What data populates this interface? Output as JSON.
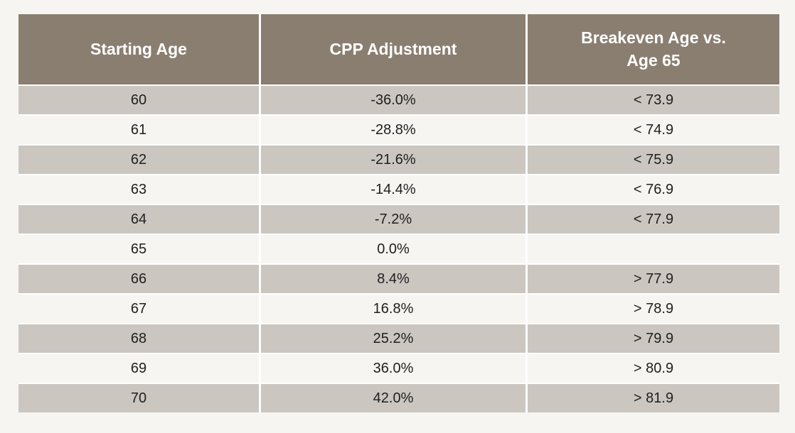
{
  "colors": {
    "header_bg": "#8a7e70",
    "header_text": "#ffffff",
    "row_shaded_bg": "#cbc6c0",
    "row_light_bg": "#f7f5f2",
    "cell_text": "#1f1f1f",
    "separator": "#ffffff",
    "page_bg": "#f7f5f2"
  },
  "chart_data": {
    "type": "table",
    "title": "",
    "columns": [
      {
        "id": "starting_age",
        "label": "Starting Age"
      },
      {
        "id": "cpp_adjustment",
        "label": "CPP Adjustment"
      },
      {
        "id": "breakeven_age",
        "label_line1": "Breakeven Age vs.",
        "label_line2": "Age 65"
      }
    ],
    "rows": [
      [
        "60",
        "-36.0%",
        "< 73.9"
      ],
      [
        "61",
        "-28.8%",
        "< 74.9"
      ],
      [
        "62",
        "-21.6%",
        "< 75.9"
      ],
      [
        "63",
        "-14.4%",
        "< 76.9"
      ],
      [
        "64",
        "-7.2%",
        "< 77.9"
      ],
      [
        "65",
        "0.0%",
        ""
      ],
      [
        "66",
        "8.4%",
        "> 77.9"
      ],
      [
        "67",
        "16.8%",
        "> 78.9"
      ],
      [
        "68",
        "25.2%",
        "> 79.9"
      ],
      [
        "69",
        "36.0%",
        "> 80.9"
      ],
      [
        "70",
        "42.0%",
        "> 81.9"
      ]
    ]
  }
}
